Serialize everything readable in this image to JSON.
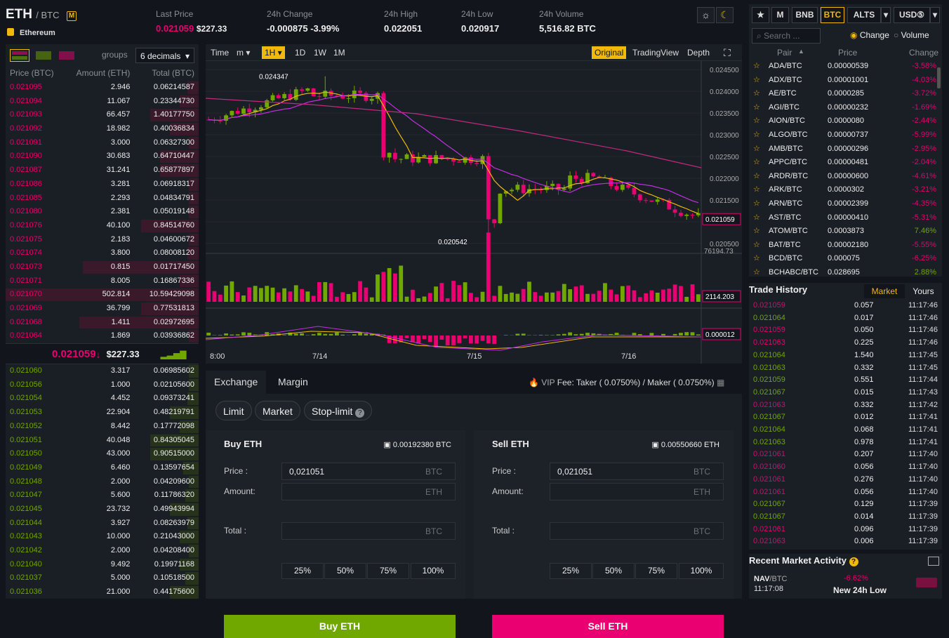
{
  "header": {
    "symbol": "ETH",
    "quote": "/ BTC",
    "badge": "M",
    "name": "Ethereum",
    "stats": [
      {
        "label": "Last Price",
        "value": "0.021059",
        "value2": "$227.33"
      },
      {
        "label": "24h Change",
        "value": "-0.000875",
        "value2": "-3.99%"
      },
      {
        "label": "24h High",
        "value": "0.022051"
      },
      {
        "label": "24h Low",
        "value": "0.020917"
      },
      {
        "label": "24h Volume",
        "value": "5,516.82 BTC"
      }
    ]
  },
  "orderbook": {
    "groups_label": "groups",
    "decimals": "6 decimals",
    "col_price": "Price (BTC)",
    "col_amount": "Amount (ETH)",
    "col_total": "Total (BTC)",
    "asks": [
      [
        "0.021095",
        "2.946",
        "0.06214587",
        0.06
      ],
      [
        "0.021094",
        "11.067",
        "0.23344730",
        0.1
      ],
      [
        "0.021093",
        "66.457",
        "1.40177750",
        0.25
      ],
      [
        "0.021092",
        "18.982",
        "0.40036834",
        0.15
      ],
      [
        "0.021091",
        "3.000",
        "0.06327300",
        0.05
      ],
      [
        "0.021090",
        "30.683",
        "0.64710447",
        0.2
      ],
      [
        "0.021087",
        "31.241",
        "0.65877897",
        0.2
      ],
      [
        "0.021086",
        "3.281",
        "0.06918317",
        0.05
      ],
      [
        "0.021085",
        "2.293",
        "0.04834791",
        0.05
      ],
      [
        "0.021080",
        "2.381",
        "0.05019148",
        0.05
      ],
      [
        "0.021076",
        "40.100",
        "0.84514760",
        0.3
      ],
      [
        "0.021075",
        "2.183",
        "0.04600672",
        0.05
      ],
      [
        "0.021074",
        "3.800",
        "0.08008120",
        0.06
      ],
      [
        "0.021073",
        "0.815",
        "0.01717450",
        0.6
      ],
      [
        "0.021071",
        "8.005",
        "0.16867336",
        0.1
      ],
      [
        "0.021070",
        "502.814",
        "10.59429098",
        1.0
      ],
      [
        "0.021069",
        "36.799",
        "0.77531813",
        0.3
      ],
      [
        "0.021068",
        "1.411",
        "0.02972695",
        0.62
      ],
      [
        "0.021064",
        "1.869",
        "0.03936862",
        0.05
      ]
    ],
    "mid_price": "0.021059",
    "mid_arrow": "↓",
    "mid_usd": "$227.33",
    "bids": [
      [
        "0.021060",
        "3.317",
        "0.06985602",
        0.05
      ],
      [
        "0.021056",
        "1.000",
        "0.02105600",
        0.05
      ],
      [
        "0.021054",
        "4.452",
        "0.09373241",
        0.06
      ],
      [
        "0.021053",
        "22.904",
        "0.48219791",
        0.15
      ],
      [
        "0.021052",
        "8.442",
        "0.17772098",
        0.1
      ],
      [
        "0.021051",
        "40.048",
        "0.84305045",
        0.25
      ],
      [
        "0.021050",
        "43.000",
        "0.90515000",
        0.25
      ],
      [
        "0.021049",
        "6.460",
        "0.13597654",
        0.08
      ],
      [
        "0.021048",
        "2.000",
        "0.04209600",
        0.05
      ],
      [
        "0.021047",
        "5.600",
        "0.11786320",
        0.07
      ],
      [
        "0.021045",
        "23.732",
        "0.49943994",
        0.15
      ],
      [
        "0.021044",
        "3.927",
        "0.08263979",
        0.06
      ],
      [
        "0.021043",
        "10.000",
        "0.21043000",
        0.1
      ],
      [
        "0.021042",
        "2.000",
        "0.04208400",
        0.05
      ],
      [
        "0.021040",
        "9.492",
        "0.19971168",
        0.1
      ],
      [
        "0.021037",
        "5.000",
        "0.10518500",
        0.07
      ],
      [
        "0.021036",
        "21.000",
        "0.44175600",
        0.15
      ]
    ]
  },
  "chart_toolbar": {
    "items": [
      "Time",
      "m",
      "1H",
      "1D",
      "1W",
      "1M"
    ],
    "views": [
      "Original",
      "TradingView",
      "Depth"
    ]
  },
  "chart_data": {
    "type": "candlestick",
    "yticks": [
      "0.024500",
      "0.024000",
      "0.023500",
      "0.023000",
      "0.022500",
      "0.022000",
      "0.021500",
      "0.021000",
      "0.020500"
    ],
    "ylim": [
      0.0204,
      0.0246
    ],
    "last_label": "0.021059",
    "high_label": "0.024347",
    "low_label": "0.020542",
    "vol_max": "76194.73",
    "vol_label": "2114.203",
    "macd_label": "0.000012",
    "xticks": [
      "8:00",
      "7/14",
      "7/15",
      "7/16"
    ]
  },
  "trade": {
    "tabs": [
      "Exchange",
      "Margin"
    ],
    "vip": "VIP",
    "fee": "Fee: Taker ( 0.0750%) / Maker ( 0.0750%)",
    "types": [
      "Limit",
      "Market",
      "Stop-limit"
    ],
    "buy": {
      "title": "Buy ETH",
      "balance": "0.00192380 BTC",
      "price_label": "Price :",
      "price": "0,021051",
      "price_unit": "BTC",
      "amount_label": "Amount:",
      "amount_unit": "ETH",
      "total_label": "Total :",
      "total_unit": "BTC",
      "button": "Buy ETH"
    },
    "sell": {
      "title": "Sell ETH",
      "balance": "0.00550660 ETH",
      "price_label": "Price :",
      "price": "0,021051",
      "price_unit": "BTC",
      "amount_label": "Amount:",
      "amount_unit": "ETH",
      "total_label": "Total :",
      "total_unit": "BTC",
      "button": "Sell ETH"
    },
    "pcts": [
      "25%",
      "50%",
      "75%",
      "100%"
    ]
  },
  "markets": {
    "tabs": [
      "M",
      "BNB",
      "BTC",
      "ALTS",
      "USD⑤"
    ],
    "search_placeholder": "Search ...",
    "change_label": "Change",
    "volume_label": "Volume",
    "col_pair": "Pair",
    "col_price": "Price",
    "col_change": "Change",
    "rows": [
      [
        "ADA/BTC",
        "0.00000539",
        "-3.58%"
      ],
      [
        "ADX/BTC",
        "0.00001001",
        "-4.03%"
      ],
      [
        "AE/BTC",
        "0.0000285",
        "-3.72%"
      ],
      [
        "AGI/BTC",
        "0.00000232",
        "-1.69%"
      ],
      [
        "AION/BTC",
        "0.0000080",
        "-2.44%"
      ],
      [
        "ALGO/BTC",
        "0.00000737",
        "-5.99%"
      ],
      [
        "AMB/BTC",
        "0.00000296",
        "-2.95%"
      ],
      [
        "APPC/BTC",
        "0.00000481",
        "-2.04%"
      ],
      [
        "ARDR/BTC",
        "0.00000600",
        "-4.61%"
      ],
      [
        "ARK/BTC",
        "0.0000302",
        "-3.21%"
      ],
      [
        "ARN/BTC",
        "0.00002399",
        "-4.35%"
      ],
      [
        "AST/BTC",
        "0.00000410",
        "-5.31%"
      ],
      [
        "ATOM/BTC",
        "0.0003873",
        "7.46%"
      ],
      [
        "BAT/BTC",
        "0.00002180",
        "-5.55%"
      ],
      [
        "BCD/BTC",
        "0.000075",
        "-6.25%"
      ],
      [
        "BCHABC/BTC",
        "0.028695",
        "2.88%"
      ]
    ]
  },
  "trade_history": {
    "title": "Trade History",
    "tabs": [
      "Market",
      "Yours"
    ],
    "rows": [
      [
        "0.021059",
        "0.057",
        "11:17:46",
        "s"
      ],
      [
        "0.021064",
        "0.017",
        "11:17:46",
        "b"
      ],
      [
        "0.021059",
        "0.050",
        "11:17:46",
        "s"
      ],
      [
        "0.021063",
        "0.225",
        "11:17:46",
        "s"
      ],
      [
        "0.021064",
        "1.540",
        "11:17:45",
        "b"
      ],
      [
        "0.021063",
        "0.332",
        "11:17:45",
        "b"
      ],
      [
        "0.021059",
        "0.551",
        "11:17:44",
        "b"
      ],
      [
        "0.021067",
        "0.015",
        "11:17:43",
        "b"
      ],
      [
        "0.021063",
        "0.332",
        "11:17:42",
        "s"
      ],
      [
        "0.021067",
        "0.012",
        "11:17:41",
        "b"
      ],
      [
        "0.021064",
        "0.068",
        "11:17:41",
        "b"
      ],
      [
        "0.021063",
        "0.978",
        "11:17:41",
        "b"
      ],
      [
        "0.021061",
        "0.207",
        "11:17:40",
        "s"
      ],
      [
        "0.021060",
        "0.056",
        "11:17:40",
        "s"
      ],
      [
        "0.021061",
        "0.276",
        "11:17:40",
        "s"
      ],
      [
        "0.021061",
        "0.056",
        "11:17:40",
        "s"
      ],
      [
        "0.021067",
        "0.129",
        "11:17:39",
        "b"
      ],
      [
        "0.021067",
        "0.014",
        "11:17:39",
        "b"
      ],
      [
        "0.021061",
        "0.096",
        "11:17:39",
        "s"
      ],
      [
        "0.021063",
        "0.006",
        "11:17:39",
        "s"
      ]
    ]
  },
  "recent": {
    "title": "Recent Market Activity",
    "pair": "NAV",
    "quote": "/BTC",
    "time": "11:17:08",
    "change": "-6.62%",
    "desc": "New 24h Low"
  }
}
